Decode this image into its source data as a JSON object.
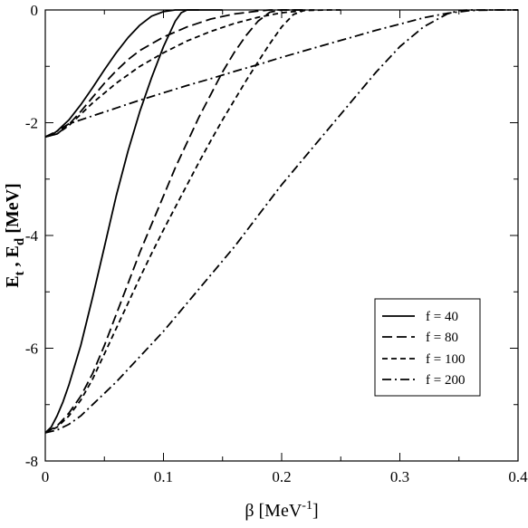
{
  "chart_data": {
    "type": "line",
    "xlabel": {
      "main": "β [MeV",
      "sup": "-1",
      "close": "]"
    },
    "ylabel": {
      "e1": "E",
      "sub1": "t",
      "sep": " ,  ",
      "e2": "E",
      "sub2": "d",
      "unit": " [MeV]"
    },
    "xlim": [
      0,
      0.4
    ],
    "ylim": [
      -8,
      0
    ],
    "x_ticks": [
      0,
      0.1,
      0.2,
      0.3,
      0.4
    ],
    "x_tick_labels": [
      "0",
      "0.1",
      "0.2",
      "0.3",
      "0.4"
    ],
    "y_ticks": [
      -8,
      -6,
      -4,
      -2,
      0
    ],
    "y_tick_labels": [
      "-8",
      "-6",
      "-4",
      "-2",
      "0"
    ],
    "grid": false,
    "legend_position": "lower-right",
    "series": [
      {
        "name": "f = 40",
        "dash": "solid",
        "curves": [
          {
            "x": [
              0,
              0.005,
              0.01,
              0.02,
              0.03,
              0.04,
              0.05,
              0.06,
              0.07,
              0.08,
              0.09,
              0.1,
              0.11,
              0.12,
              0.13,
              0.15
            ],
            "y": [
              -2.25,
              -2.22,
              -2.15,
              -1.95,
              -1.68,
              -1.38,
              -1.06,
              -0.76,
              -0.49,
              -0.27,
              -0.11,
              -0.03,
              0.0,
              0.0,
              0.0,
              0.0
            ]
          },
          {
            "x": [
              0,
              0.005,
              0.01,
              0.015,
              0.02,
              0.03,
              0.04,
              0.05,
              0.06,
              0.07,
              0.08,
              0.09,
              0.1,
              0.11,
              0.115,
              0.12,
              0.13
            ],
            "y": [
              -7.5,
              -7.4,
              -7.2,
              -6.95,
              -6.65,
              -5.95,
              -5.1,
              -4.2,
              -3.3,
              -2.5,
              -1.8,
              -1.2,
              -0.65,
              -0.2,
              -0.05,
              0.0,
              0.0
            ]
          }
        ]
      },
      {
        "name": "f = 80",
        "dash": "long-dash",
        "curves": [
          {
            "x": [
              0,
              0.01,
              0.02,
              0.03,
              0.04,
              0.05,
              0.06,
              0.07,
              0.08,
              0.1,
              0.12,
              0.14,
              0.16,
              0.18,
              0.19,
              0.2,
              0.22
            ],
            "y": [
              -2.25,
              -2.2,
              -2.03,
              -1.8,
              -1.55,
              -1.3,
              -1.08,
              -0.88,
              -0.72,
              -0.48,
              -0.3,
              -0.16,
              -0.07,
              -0.02,
              0.0,
              0.0,
              0.0
            ]
          },
          {
            "x": [
              0,
              0.01,
              0.02,
              0.03,
              0.04,
              0.05,
              0.06,
              0.07,
              0.08,
              0.09,
              0.1,
              0.11,
              0.12,
              0.13,
              0.14,
              0.15,
              0.16,
              0.17,
              0.18,
              0.19,
              0.2,
              0.22
            ],
            "y": [
              -7.5,
              -7.38,
              -7.15,
              -6.85,
              -6.45,
              -5.95,
              -5.4,
              -4.85,
              -4.3,
              -3.8,
              -3.3,
              -2.8,
              -2.35,
              -1.9,
              -1.5,
              -1.1,
              -0.75,
              -0.45,
              -0.2,
              -0.04,
              0.0,
              0.0
            ]
          }
        ]
      },
      {
        "name": "f = 100",
        "dash": "short-dash",
        "curves": [
          {
            "x": [
              0,
              0.01,
              0.02,
              0.03,
              0.04,
              0.06,
              0.08,
              0.1,
              0.12,
              0.14,
              0.16,
              0.18,
              0.2,
              0.22,
              0.24,
              0.25
            ],
            "y": [
              -2.25,
              -2.2,
              -2.05,
              -1.85,
              -1.65,
              -1.3,
              -1.0,
              -0.76,
              -0.55,
              -0.38,
              -0.24,
              -0.13,
              -0.05,
              -0.01,
              0.0,
              0.0
            ]
          },
          {
            "x": [
              0,
              0.01,
              0.02,
              0.03,
              0.04,
              0.05,
              0.06,
              0.07,
              0.08,
              0.09,
              0.1,
              0.11,
              0.12,
              0.13,
              0.14,
              0.15,
              0.16,
              0.17,
              0.18,
              0.19,
              0.2,
              0.21,
              0.22,
              0.23
            ],
            "y": [
              -7.5,
              -7.4,
              -7.2,
              -6.92,
              -6.55,
              -6.1,
              -5.65,
              -5.2,
              -4.75,
              -4.32,
              -3.9,
              -3.5,
              -3.1,
              -2.7,
              -2.32,
              -1.95,
              -1.6,
              -1.25,
              -0.92,
              -0.6,
              -0.3,
              -0.08,
              0.0,
              0.0
            ]
          }
        ]
      },
      {
        "name": "f = 200",
        "dash": "dash-dot",
        "curves": [
          {
            "x": [
              0,
              0.01,
              0.02,
              0.04,
              0.06,
              0.08,
              0.1,
              0.12,
              0.14,
              0.16,
              0.18,
              0.2,
              0.22,
              0.24,
              0.26,
              0.28,
              0.3,
              0.32,
              0.34,
              0.36,
              0.38,
              0.4
            ],
            "y": [
              -2.25,
              -2.15,
              -2.02,
              -1.88,
              -1.74,
              -1.6,
              -1.47,
              -1.34,
              -1.22,
              -1.09,
              -0.97,
              -0.84,
              -0.72,
              -0.6,
              -0.48,
              -0.36,
              -0.25,
              -0.14,
              -0.06,
              -0.01,
              0.0,
              0.0
            ]
          },
          {
            "x": [
              0,
              0.01,
              0.02,
              0.03,
              0.04,
              0.05,
              0.06,
              0.08,
              0.1,
              0.12,
              0.14,
              0.16,
              0.18,
              0.2,
              0.22,
              0.24,
              0.26,
              0.28,
              0.3,
              0.32,
              0.34,
              0.35,
              0.36,
              0.38,
              0.4
            ],
            "y": [
              -7.5,
              -7.45,
              -7.35,
              -7.2,
              -7.0,
              -6.8,
              -6.6,
              -6.15,
              -5.7,
              -5.2,
              -4.7,
              -4.2,
              -3.65,
              -3.1,
              -2.6,
              -2.1,
              -1.6,
              -1.1,
              -0.65,
              -0.3,
              -0.07,
              -0.01,
              0.0,
              0.0,
              0.0
            ]
          }
        ]
      }
    ]
  }
}
